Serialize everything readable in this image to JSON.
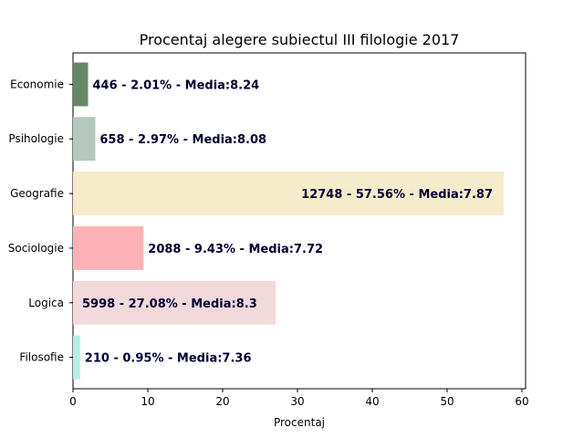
{
  "chart_data": {
    "type": "bar",
    "orientation": "horizontal",
    "title": "Procentaj alegere subiectul III filologie 2017",
    "xlabel": "Procentaj",
    "ylabel": "",
    "xlim": [
      0,
      60
    ],
    "xticks": [
      "0",
      "10",
      "20",
      "30",
      "40",
      "50",
      "60"
    ],
    "grid": false,
    "categories": [
      "Filosofie",
      "Logica",
      "Sociologie",
      "Geografie",
      "Psihologie",
      "Economie"
    ],
    "values": [
      0.95,
      27.08,
      9.43,
      57.56,
      2.97,
      2.01
    ],
    "labels": [
      "210 - 0.95% - Media:7.36",
      "5998 - 27.08% - Media:8.3",
      "2088 - 9.43% - Media:7.72",
      "12748 - 57.56% - Media:7.87",
      "658 - 2.97% - Media:8.08",
      "446 - 2.01% - Media:8.24"
    ],
    "colors": [
      "#b8ece6",
      "#f2d9db",
      "#fdb3b5",
      "#f5eccb",
      "#b6c8bd",
      "#678866"
    ],
    "label_color": "#000033"
  }
}
